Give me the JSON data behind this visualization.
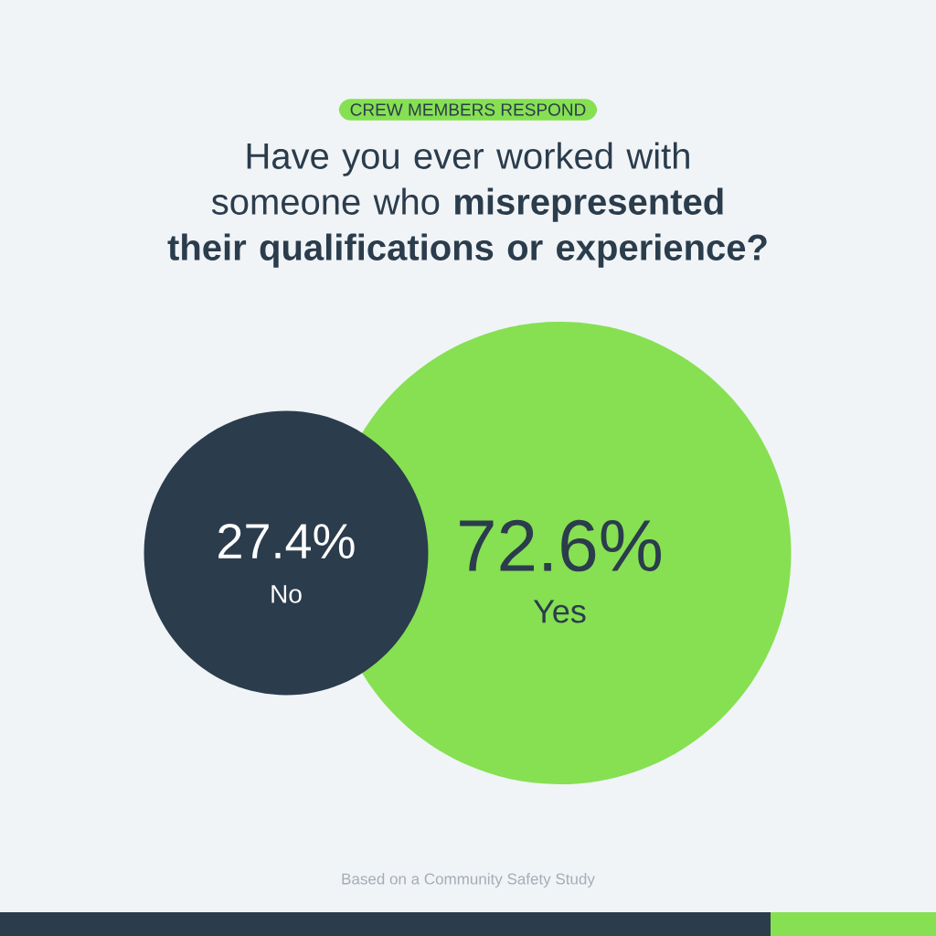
{
  "chart_data": {
    "type": "other",
    "subtitle": "CREW MEMBERS RESPOND",
    "title": "Have you ever worked with someone who **misrepresented their qualifications or experience?**",
    "categories": [
      "No",
      "Yes"
    ],
    "values": [
      27.4,
      72.6
    ],
    "value_labels": [
      "27.4%",
      "72.6%"
    ],
    "colors": [
      "#2b3c4c",
      "#86e052"
    ],
    "annotations": [
      "Based on a Community Safety Study"
    ]
  }
}
